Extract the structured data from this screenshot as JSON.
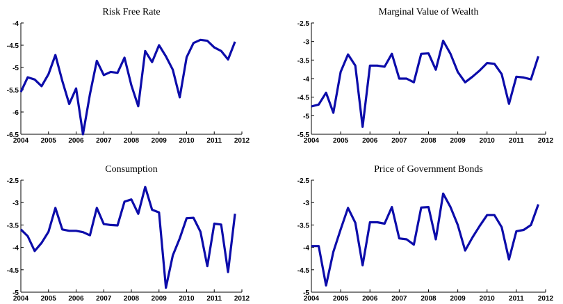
{
  "chart_data": [
    {
      "type": "line",
      "title": "Risk Free Rate",
      "color": "#0c0caa",
      "x": [
        2004,
        2004.25,
        2004.5,
        2004.75,
        2005,
        2005.25,
        2005.5,
        2005.75,
        2006,
        2006.25,
        2006.5,
        2006.75,
        2007,
        2007.25,
        2007.5,
        2007.75,
        2008,
        2008.25,
        2008.5,
        2008.75,
        2009,
        2009.25,
        2009.5,
        2009.75,
        2010,
        2010.25,
        2010.5,
        2010.75,
        2011,
        2011.25,
        2011.5,
        2011.75
      ],
      "values": [
        -5.55,
        -5.22,
        -5.27,
        -5.42,
        -5.15,
        -4.72,
        -5.3,
        -5.82,
        -5.47,
        -6.5,
        -5.6,
        -4.85,
        -5.17,
        -5.1,
        -5.12,
        -4.78,
        -5.4,
        -5.87,
        -4.63,
        -4.88,
        -4.5,
        -4.75,
        -5.05,
        -5.67,
        -4.77,
        -4.45,
        -4.38,
        -4.4,
        -4.55,
        -4.63,
        -4.82,
        -4.42
      ],
      "xlim": [
        2004,
        2012
      ],
      "xticks": [
        2004,
        2005,
        2006,
        2007,
        2008,
        2009,
        2010,
        2011,
        2012
      ],
      "ylim": [
        -6.5,
        -4
      ],
      "yticks": [
        -6.5,
        -6,
        -5.5,
        -5,
        -4.5,
        -4
      ]
    },
    {
      "type": "line",
      "title": "Marginal Value of Wealth",
      "color": "#0c0caa",
      "x": [
        2004,
        2004.25,
        2004.5,
        2004.75,
        2005,
        2005.25,
        2005.5,
        2005.75,
        2006,
        2006.25,
        2006.5,
        2006.75,
        2007,
        2007.25,
        2007.5,
        2007.75,
        2008,
        2008.25,
        2008.5,
        2008.75,
        2009,
        2009.25,
        2009.5,
        2009.75,
        2010,
        2010.25,
        2010.5,
        2010.75,
        2011,
        2011.25,
        2011.5,
        2011.75
      ],
      "values": [
        -4.75,
        -4.7,
        -4.38,
        -4.92,
        -3.82,
        -3.35,
        -3.65,
        -5.3,
        -3.65,
        -3.65,
        -3.68,
        -3.33,
        -4.0,
        -4.0,
        -4.1,
        -3.33,
        -3.32,
        -3.76,
        -2.98,
        -3.33,
        -3.82,
        -4.1,
        -3.95,
        -3.78,
        -3.58,
        -3.6,
        -3.88,
        -4.68,
        -3.95,
        -3.97,
        -4.02,
        -3.4
      ],
      "xlim": [
        2004,
        2012
      ],
      "xticks": [
        2004,
        2005,
        2006,
        2007,
        2008,
        2009,
        2010,
        2011,
        2012
      ],
      "ylim": [
        -5.5,
        -2.5
      ],
      "yticks": [
        -5.5,
        -5,
        -4.5,
        -4,
        -3.5,
        -3,
        -2.5
      ]
    },
    {
      "type": "line",
      "title": "Consumption",
      "color": "#0c0caa",
      "x": [
        2004,
        2004.25,
        2004.5,
        2004.75,
        2005,
        2005.25,
        2005.5,
        2005.75,
        2006,
        2006.25,
        2006.5,
        2006.75,
        2007,
        2007.25,
        2007.5,
        2007.75,
        2008,
        2008.25,
        2008.5,
        2008.75,
        2009,
        2009.25,
        2009.5,
        2009.75,
        2010,
        2010.25,
        2010.5,
        2010.75,
        2011,
        2011.25,
        2011.5,
        2011.75
      ],
      "values": [
        -3.6,
        -3.75,
        -4.08,
        -3.9,
        -3.65,
        -3.12,
        -3.6,
        -3.63,
        -3.63,
        -3.66,
        -3.73,
        -3.12,
        -3.48,
        -3.5,
        -3.51,
        -2.98,
        -2.93,
        -3.25,
        -2.65,
        -3.16,
        -3.22,
        -4.9,
        -4.18,
        -3.8,
        -3.35,
        -3.34,
        -3.65,
        -4.42,
        -3.47,
        -3.49,
        -4.55,
        -3.25
      ],
      "xlim": [
        2004,
        2012
      ],
      "xticks": [
        2004,
        2005,
        2006,
        2007,
        2008,
        2009,
        2010,
        2011,
        2012
      ],
      "ylim": [
        -5,
        -2.5
      ],
      "yticks": [
        -5,
        -4.5,
        -4,
        -3.5,
        -3,
        -2.5
      ]
    },
    {
      "type": "line",
      "title": "Price of Government Bonds",
      "color": "#0c0caa",
      "x": [
        2004,
        2004.25,
        2004.5,
        2004.75,
        2005,
        2005.25,
        2005.5,
        2005.75,
        2006,
        2006.25,
        2006.5,
        2006.75,
        2007,
        2007.25,
        2007.5,
        2007.75,
        2008,
        2008.25,
        2008.5,
        2008.75,
        2009,
        2009.25,
        2009.5,
        2009.75,
        2010,
        2010.25,
        2010.5,
        2010.75,
        2011,
        2011.25,
        2011.5,
        2011.75
      ],
      "values": [
        -3.97,
        -3.97,
        -4.85,
        -4.1,
        -3.6,
        -3.12,
        -3.45,
        -4.4,
        -3.44,
        -3.44,
        -3.47,
        -3.1,
        -3.8,
        -3.82,
        -3.94,
        -3.11,
        -3.1,
        -3.82,
        -2.8,
        -3.1,
        -3.5,
        -4.07,
        -3.78,
        -3.52,
        -3.28,
        -3.28,
        -3.55,
        -4.27,
        -3.64,
        -3.61,
        -3.5,
        -3.04
      ],
      "xlim": [
        2004,
        2012
      ],
      "xticks": [
        2004,
        2005,
        2006,
        2007,
        2008,
        2009,
        2010,
        2011,
        2012
      ],
      "ylim": [
        -5,
        -2.5
      ],
      "yticks": [
        -5,
        -4.5,
        -4,
        -3.5,
        -3,
        -2.5
      ]
    }
  ]
}
